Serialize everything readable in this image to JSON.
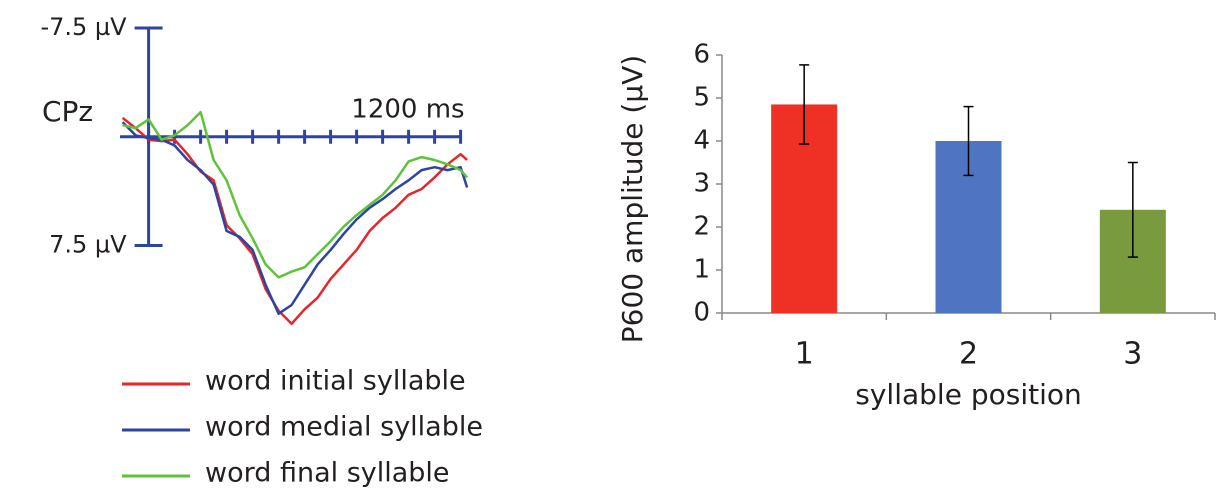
{
  "chart_data": [
    {
      "type": "line",
      "annotations": [
        "CPz"
      ],
      "x_axis_label": "1200 ms",
      "y_inverted": true,
      "xlim": [
        -110,
        1240
      ],
      "xticks": [
        0,
        100,
        200,
        300,
        400,
        500,
        600,
        700,
        800,
        900,
        1000,
        1100,
        1200
      ],
      "ylim": [
        -7.5,
        13.6
      ],
      "yticks": [
        {
          "value": -7.5,
          "label": "-7.5 µV"
        },
        {
          "value": 7.5,
          "label": "7.5 µV"
        }
      ],
      "x": [
        -100,
        -50,
        0,
        50,
        100,
        150,
        200,
        250,
        300,
        350,
        400,
        450,
        500,
        550,
        600,
        650,
        700,
        750,
        800,
        850,
        900,
        950,
        1000,
        1050,
        1100,
        1150,
        1200,
        1225
      ],
      "series": [
        {
          "name": "word initial syllable",
          "color": "#e8242a",
          "values": [
            -1.3,
            -0.6,
            0.2,
            0.3,
            0.2,
            1.2,
            2.4,
            3.0,
            6.1,
            7.0,
            8.1,
            10.5,
            12.0,
            12.9,
            11.9,
            11.1,
            9.8,
            8.8,
            7.8,
            6.5,
            5.6,
            4.9,
            4.0,
            3.6,
            2.8,
            1.9,
            1.2,
            1.6
          ]
        },
        {
          "name": "word medial syllable",
          "color": "#2b45a0",
          "values": [
            -1.0,
            -0.1,
            0.1,
            0.2,
            0.6,
            1.6,
            2.3,
            3.3,
            6.5,
            6.9,
            7.8,
            10.2,
            12.2,
            11.6,
            10.2,
            8.8,
            7.8,
            6.7,
            5.7,
            4.9,
            4.3,
            3.6,
            3.0,
            2.3,
            2.1,
            2.3,
            2.1,
            3.5
          ]
        },
        {
          "name": "word final syllable",
          "color": "#5fc23a",
          "values": [
            -0.8,
            -0.6,
            -1.2,
            0.2,
            -0.1,
            -0.8,
            -1.7,
            1.6,
            3.0,
            5.4,
            7.0,
            8.8,
            9.7,
            9.3,
            9.0,
            8.1,
            7.2,
            6.2,
            5.4,
            4.7,
            4.0,
            3.0,
            1.7,
            1.4,
            1.6,
            1.9,
            2.3,
            2.8
          ]
        }
      ]
    },
    {
      "type": "bar",
      "ylabel": "P600 amplitude (µV)",
      "xlabel": "syllable position",
      "categories": [
        "1",
        "2",
        "3"
      ],
      "values": [
        4.85,
        4.0,
        2.4
      ],
      "errors": [
        0.92,
        0.8,
        1.1
      ],
      "colors": [
        "#ee3124",
        "#4f75c2",
        "#7a9a3e"
      ],
      "ylim": [
        0,
        6
      ],
      "yticks": [
        0,
        1,
        2,
        3,
        4,
        5,
        6
      ]
    }
  ]
}
